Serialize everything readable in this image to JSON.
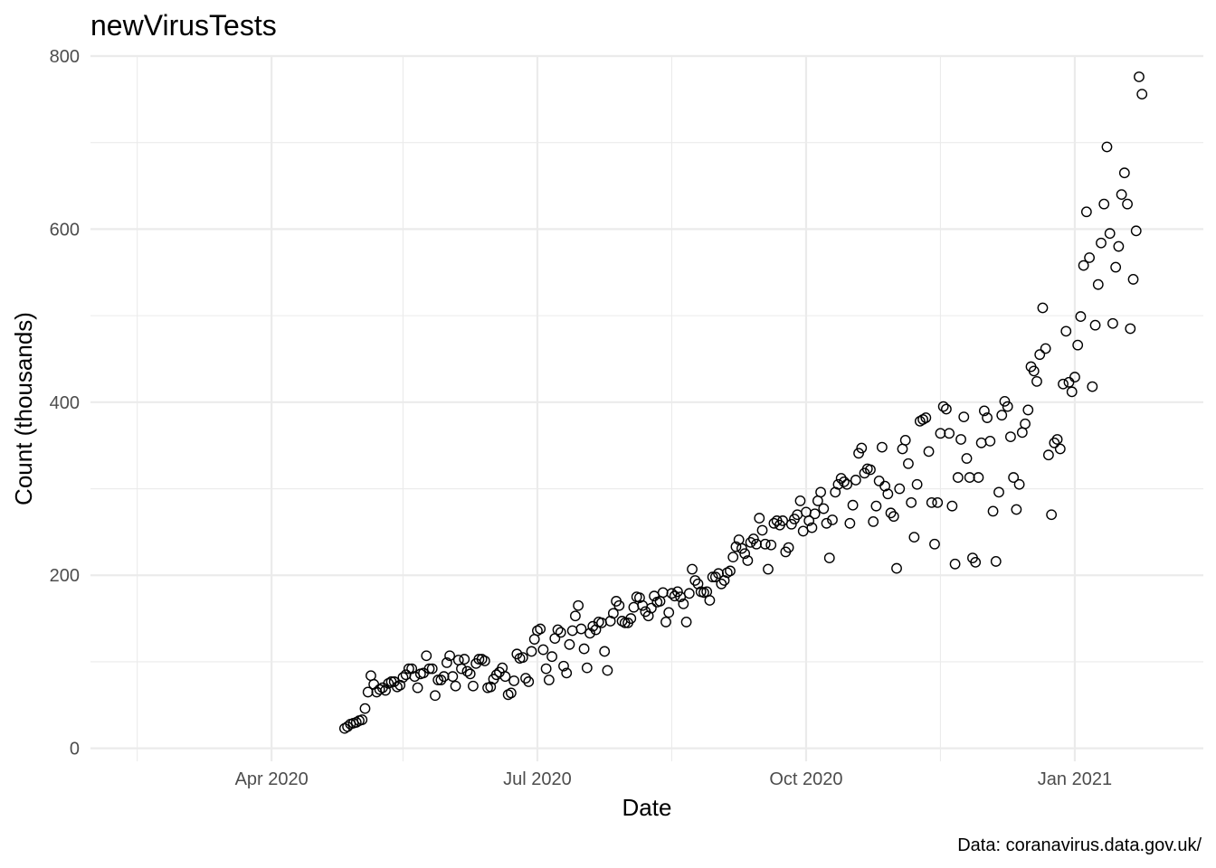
{
  "chart_data": {
    "type": "scatter",
    "title": "newVirusTests",
    "xlabel": "Date",
    "ylabel": "Count (thousands)",
    "caption": "Data: coranavirus.data.gov.uk/",
    "xlim": [
      "2020-01-30",
      "2021-02-14"
    ],
    "ylim": [
      -15,
      800
    ],
    "x_ticks": [
      {
        "date": "2020-04-01",
        "label": "Apr 2020"
      },
      {
        "date": "2020-07-01",
        "label": "Jul 2020"
      },
      {
        "date": "2020-10-01",
        "label": "Oct 2020"
      },
      {
        "date": "2021-01-01",
        "label": "Jan 2021"
      }
    ],
    "x_minor_ticks": [
      "2020-02-15",
      "2020-05-16",
      "2020-08-16",
      "2020-11-16"
    ],
    "y_ticks": [
      0,
      200,
      400,
      600,
      800
    ],
    "y_minor_ticks": [
      100,
      300,
      500,
      700
    ],
    "grid": true,
    "legend": "none",
    "series": [
      {
        "name": "newVirusTests",
        "start_date": "2020-04-26",
        "values": [
          23,
          25,
          28,
          29,
          30,
          32,
          33,
          46,
          65,
          84,
          74,
          65,
          68,
          70,
          67,
          75,
          77,
          77,
          71,
          73,
          82,
          85,
          92,
          92,
          83,
          70,
          86,
          87,
          107,
          92,
          92,
          61,
          79,
          79,
          83,
          99,
          107,
          83,
          72,
          102,
          92,
          103,
          89,
          86,
          72,
          98,
          103,
          103,
          101,
          70,
          71,
          80,
          85,
          88,
          93,
          83,
          62,
          64,
          78,
          109,
          104,
          105,
          81,
          77,
          112,
          126,
          136,
          138,
          114,
          92,
          79,
          106,
          127,
          137,
          134,
          95,
          87,
          120,
          136,
          153,
          165,
          138,
          115,
          93,
          133,
          141,
          137,
          146,
          145,
          112,
          90,
          147,
          156,
          170,
          165,
          147,
          145,
          145,
          150,
          163,
          175,
          174,
          165,
          158,
          153,
          162,
          176,
          169,
          170,
          180,
          146,
          157,
          179,
          176,
          181,
          175,
          167,
          146,
          179,
          207,
          194,
          190,
          181,
          180,
          181,
          171,
          198,
          198,
          202,
          190,
          194,
          203,
          205,
          221,
          233,
          241,
          231,
          225,
          217,
          238,
          242,
          236,
          266,
          252,
          236,
          207,
          235,
          260,
          263,
          258,
          263,
          227,
          232,
          259,
          265,
          270,
          286,
          251,
          273,
          263,
          255,
          271,
          286,
          296,
          277,
          260,
          220,
          264,
          296,
          305,
          312,
          308,
          305,
          260,
          281,
          310,
          341,
          347,
          318,
          323,
          322,
          262,
          280,
          309,
          348,
          303,
          294,
          272,
          268,
          208,
          300,
          346,
          356,
          329,
          284,
          244,
          305,
          378,
          380,
          382,
          343,
          284,
          236,
          284,
          364,
          395,
          392,
          364,
          280,
          213,
          313,
          357,
          383,
          335,
          313,
          220,
          215,
          313,
          353,
          390,
          382,
          355,
          274,
          216,
          296,
          385,
          401,
          395,
          360,
          313,
          276,
          305,
          365,
          375,
          391,
          441,
          436,
          424,
          455,
          509,
          462,
          339,
          270,
          353,
          357,
          346,
          421,
          482,
          423,
          412,
          429,
          466,
          499,
          558,
          620,
          567,
          418,
          489,
          536,
          584,
          629,
          695,
          595,
          491,
          556,
          580,
          640,
          665,
          629,
          485,
          542,
          598,
          776,
          756
        ]
      }
    ]
  }
}
